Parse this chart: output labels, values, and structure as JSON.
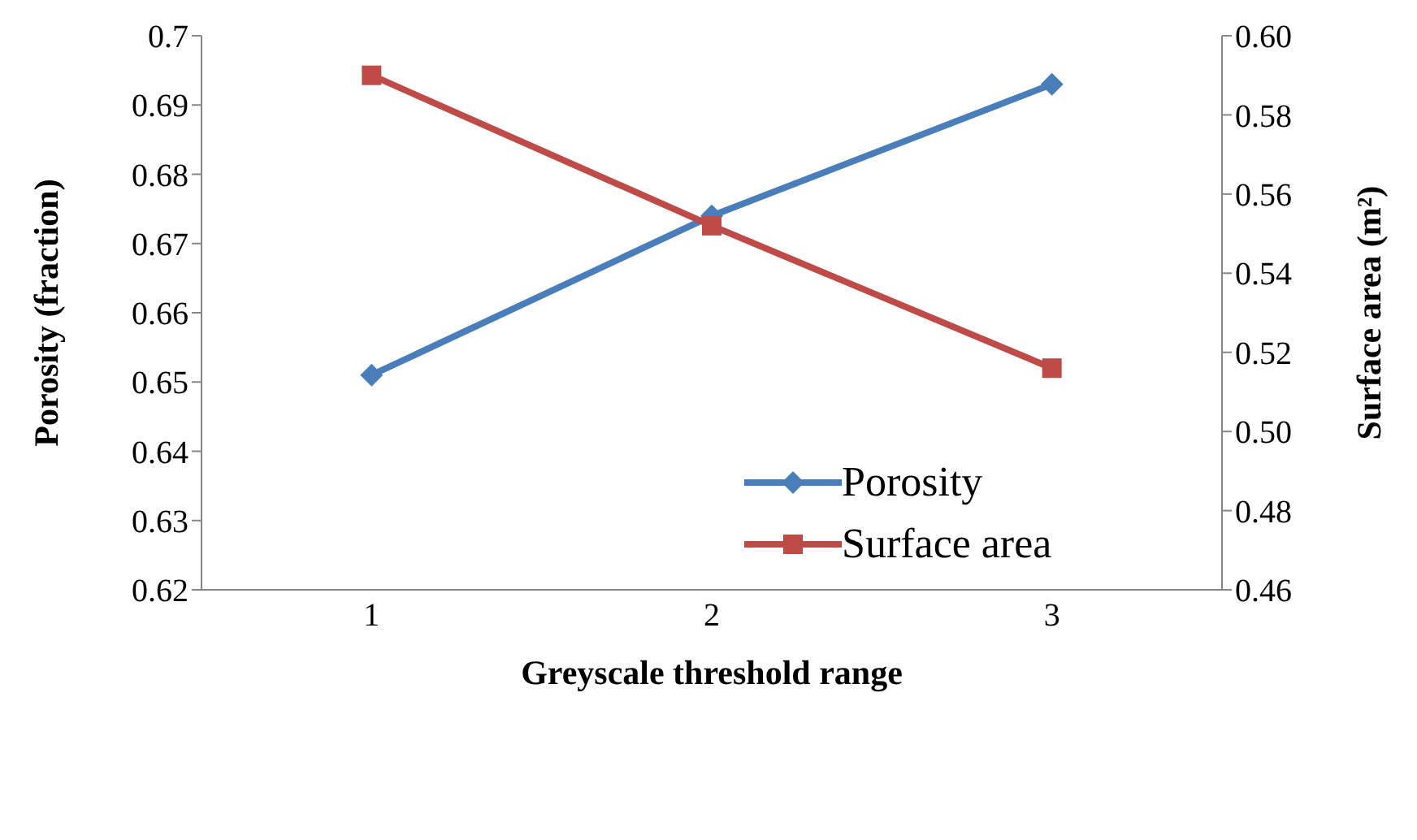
{
  "chart_data": {
    "type": "line",
    "xlabel": "Greyscale threshold range",
    "ylabel": "Porosity (fraction)",
    "y2label": "Surface area (m²)",
    "categories": [
      "1",
      "2",
      "3"
    ],
    "series": [
      {
        "name": "Porosity",
        "color": "#4a7ebb",
        "marker": "diamond",
        "values": [
          0.651,
          0.674,
          0.693
        ]
      },
      {
        "name": "Surface area",
        "color": "#be4b48",
        "marker": "square",
        "axis": "y2",
        "values": [
          0.59,
          0.552,
          0.516
        ]
      }
    ],
    "ylim": [
      0.62,
      0.7
    ],
    "yticks": [
      0.62,
      0.63,
      0.64,
      0.65,
      0.66,
      0.67,
      0.68,
      0.69,
      {
        "value": 0.7,
        "label": "0.7"
      }
    ],
    "y2lim": [
      0.46,
      0.6
    ],
    "y2ticks": [
      {
        "value": 0.46,
        "label": "0.46"
      },
      {
        "value": 0.48,
        "label": "0.48"
      },
      {
        "value": 0.5,
        "label": "0.50"
      },
      {
        "value": 0.52,
        "label": "0.52"
      },
      {
        "value": 0.54,
        "label": "0.54"
      },
      {
        "value": 0.56,
        "label": "0.56"
      },
      {
        "value": 0.58,
        "label": "0.58"
      },
      {
        "value": 0.6,
        "label": "0.60"
      }
    ],
    "grid": false,
    "legend": "bottom right",
    "line_style": "solid"
  }
}
